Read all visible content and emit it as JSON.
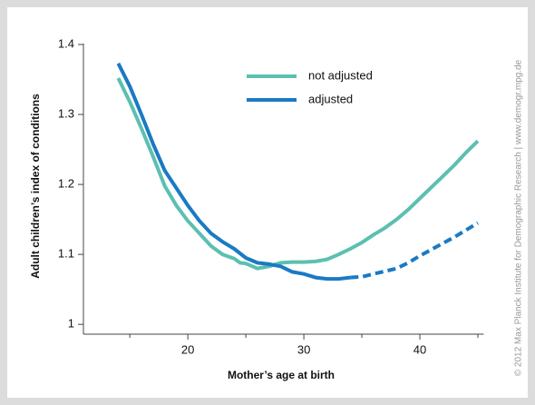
{
  "chart_data": {
    "type": "line",
    "y_label": "Adult children’s index of conditions",
    "x_label": "Mother’s age at birth",
    "credit": "© 2012 Max Planck Institute for Demographic Research | www.demogr.mpg.de",
    "xlim": [
      11,
      45.5
    ],
    "xticks": [
      20,
      30,
      40
    ],
    "minor_xticks": [
      15,
      25,
      35,
      45
    ],
    "ylim": [
      0.986,
      1.4
    ],
    "yticks": [
      {
        "value": 1,
        "label": "1"
      },
      1.1,
      1.2,
      1.3,
      1.4
    ],
    "legend": "top-center",
    "series": [
      {
        "name": "not adjusted",
        "color": "#5cbfb1",
        "x": [
          14,
          15,
          16,
          17,
          18,
          19,
          20,
          21,
          22,
          23,
          24,
          24.5,
          25,
          26,
          27,
          28,
          29,
          30,
          31,
          32,
          33,
          34,
          35,
          36,
          37,
          38,
          39,
          40,
          41,
          42,
          43,
          44,
          45
        ],
        "values": [
          1.352,
          1.318,
          1.28,
          1.24,
          1.198,
          1.17,
          1.148,
          1.13,
          1.112,
          1.1,
          1.094,
          1.088,
          1.087,
          1.08,
          1.083,
          1.088,
          1.089,
          1.089,
          1.09,
          1.093,
          1.1,
          1.108,
          1.117,
          1.128,
          1.138,
          1.15,
          1.164,
          1.18,
          1.196,
          1.212,
          1.228,
          1.246,
          1.262
        ]
      },
      {
        "name": "adjusted",
        "color": "#1a7ac4",
        "dashed_from_x": 34,
        "x": [
          14,
          15,
          16,
          17,
          18,
          19,
          20,
          21,
          22,
          23,
          24,
          25,
          26,
          27,
          28,
          29,
          30,
          31,
          32,
          33,
          34,
          35,
          36,
          37,
          38,
          39,
          40,
          41,
          42,
          43,
          44,
          45
        ],
        "values": [
          1.373,
          1.34,
          1.3,
          1.258,
          1.22,
          1.195,
          1.17,
          1.148,
          1.13,
          1.118,
          1.108,
          1.095,
          1.088,
          1.086,
          1.083,
          1.075,
          1.072,
          1.067,
          1.065,
          1.065,
          1.067,
          1.068,
          1.072,
          1.076,
          1.08,
          1.088,
          1.098,
          1.107,
          1.116,
          1.125,
          1.135,
          1.145
        ]
      }
    ]
  }
}
